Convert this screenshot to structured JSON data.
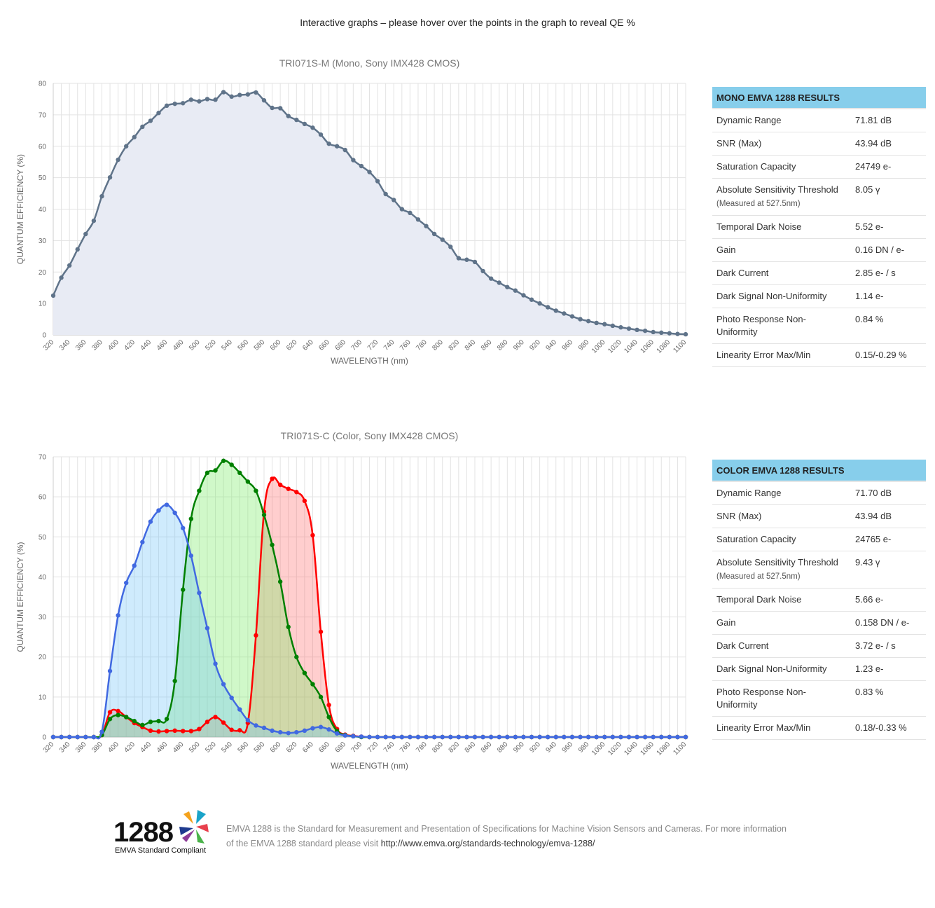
{
  "intro_text": "Interactive graphs – please hover over the points in the graph to reveal QE %",
  "chart_data": [
    {
      "type": "area",
      "title": "TRI071S-M (Mono, Sony IMX428 CMOS)",
      "xlabel": "WAVELENGTH (nm)",
      "ylabel": "QUANTUM EFFICIENCY (%)",
      "xlim": [
        320,
        1100
      ],
      "ylim": [
        0,
        80
      ],
      "yticks": [
        0,
        10,
        20,
        30,
        40,
        50,
        60,
        70,
        80
      ],
      "xtick_labels": [
        "320",
        "340",
        "360",
        "380",
        "400",
        "420",
        "440",
        "460",
        "480",
        "500",
        "520",
        "540",
        "560",
        "580",
        "600",
        "620",
        "640",
        "660",
        "680",
        "700",
        "720",
        "740",
        "760",
        "780",
        "800",
        "820",
        "840",
        "860",
        "880",
        "900",
        "920",
        "940",
        "960",
        "980",
        "1000",
        "1020",
        "1040",
        "1060",
        "1080",
        "1100"
      ],
      "x_start": 320,
      "x_step": 10,
      "series": [
        {
          "name": "Mono",
          "color": "#5f7389",
          "fill": "#e8ebf4",
          "values": [
            12.5,
            18.2,
            22.1,
            27.2,
            32.1,
            36.3,
            44.1,
            50.1,
            55.7,
            60.0,
            62.9,
            66.2,
            68.1,
            70.6,
            72.9,
            73.5,
            73.7,
            74.8,
            74.3,
            75.0,
            74.8,
            77.2,
            75.8,
            76.3,
            76.5,
            77.1,
            74.6,
            72.2,
            72.1,
            69.6,
            68.4,
            67.1,
            65.9,
            63.7,
            60.8,
            60.0,
            58.8,
            55.6,
            53.7,
            51.8,
            48.9,
            44.8,
            42.9,
            40.0,
            38.8,
            36.7,
            34.6,
            32.1,
            30.3,
            28.0,
            24.4,
            23.9,
            23.2,
            20.3,
            17.9,
            16.6,
            15.2,
            14.1,
            12.6,
            11.2,
            10.0,
            8.8,
            7.7,
            6.8,
            5.9,
            5.0,
            4.4,
            3.8,
            3.4,
            2.9,
            2.4,
            2.0,
            1.6,
            1.3,
            0.9,
            0.7,
            0.5,
            0.3,
            0.2
          ]
        }
      ]
    },
    {
      "type": "area",
      "title": "TRI071S-C (Color, Sony IMX428 CMOS)",
      "xlabel": "WAVELENGTH (nm)",
      "ylabel": "QUANTUM EFFICIENCY (%)",
      "xlim": [
        320,
        1100
      ],
      "ylim": [
        0,
        70
      ],
      "yticks": [
        0,
        10,
        20,
        30,
        40,
        50,
        60,
        70
      ],
      "xtick_labels": [
        "320",
        "340",
        "360",
        "380",
        "400",
        "420",
        "440",
        "460",
        "480",
        "500",
        "520",
        "540",
        "560",
        "580",
        "600",
        "620",
        "640",
        "660",
        "680",
        "700",
        "720",
        "740",
        "760",
        "780",
        "800",
        "820",
        "840",
        "860",
        "880",
        "900",
        "920",
        "940",
        "960",
        "980",
        "1000",
        "1020",
        "1040",
        "1060",
        "1080",
        "1100"
      ],
      "x_start": 320,
      "x_step": 10,
      "series": [
        {
          "name": "Red",
          "color": "#ff0000",
          "fill": "rgba(255,80,80,0.28)",
          "values": [
            0,
            0,
            0,
            0,
            0,
            0,
            0.5,
            6.2,
            6.5,
            5.0,
            3.5,
            2.5,
            1.6,
            1.4,
            1.5,
            1.6,
            1.5,
            1.5,
            2.0,
            3.8,
            5.0,
            3.6,
            1.8,
            1.7,
            3.5,
            25.4,
            56.3,
            64.5,
            63.0,
            62.0,
            61.2,
            59.0,
            50.4,
            26.3,
            8.0,
            2.0,
            0.6,
            0.3,
            0.1,
            0,
            0,
            0,
            0,
            0,
            0,
            0,
            0,
            0,
            0,
            0,
            0,
            0,
            0,
            0,
            0,
            0,
            0,
            0,
            0,
            0,
            0,
            0,
            0,
            0,
            0,
            0,
            0,
            0,
            0,
            0,
            0,
            0,
            0,
            0,
            0,
            0,
            0,
            0,
            0
          ]
        },
        {
          "name": "Green",
          "color": "#008000",
          "fill": "rgba(120,235,100,0.35)",
          "values": [
            0,
            0,
            0,
            0,
            0,
            0,
            0.5,
            4.5,
            5.5,
            5.0,
            4.0,
            3.0,
            3.8,
            4.0,
            4.5,
            14.0,
            36.8,
            54.5,
            61.5,
            66.0,
            66.6,
            69.0,
            68.0,
            66.0,
            63.8,
            61.5,
            55.5,
            48.0,
            38.8,
            27.5,
            20.0,
            16.0,
            13.2,
            10.0,
            5.0,
            1.5,
            0.5,
            0.2,
            0,
            0,
            0,
            0,
            0,
            0,
            0,
            0,
            0,
            0,
            0,
            0,
            0,
            0,
            0,
            0,
            0,
            0,
            0,
            0,
            0,
            0,
            0,
            0,
            0,
            0,
            0,
            0,
            0,
            0,
            0,
            0,
            0,
            0,
            0,
            0,
            0,
            0,
            0,
            0,
            0
          ]
        },
        {
          "name": "Blue",
          "color": "#4169e1",
          "fill": "rgba(110,195,250,0.33)",
          "values": [
            0,
            0,
            0,
            0,
            0,
            0,
            1.3,
            16.5,
            30.4,
            38.5,
            42.8,
            48.7,
            53.8,
            56.6,
            58.0,
            56.0,
            52.2,
            45.3,
            36.0,
            27.2,
            18.3,
            13.2,
            9.8,
            6.9,
            4.2,
            2.9,
            2.3,
            1.6,
            1.2,
            1.0,
            1.2,
            1.6,
            2.2,
            2.5,
            1.9,
            0.9,
            0.4,
            0.2,
            0.1,
            0,
            0,
            0,
            0,
            0,
            0,
            0,
            0,
            0,
            0,
            0,
            0,
            0,
            0,
            0,
            0,
            0,
            0,
            0,
            0,
            0,
            0,
            0,
            0,
            0,
            0,
            0,
            0,
            0,
            0,
            0,
            0,
            0,
            0,
            0,
            0,
            0,
            0,
            0,
            0
          ]
        }
      ]
    }
  ],
  "mono_results": {
    "header": "MONO EMVA 1288 RESULTS",
    "rows": [
      {
        "label": "Dynamic Range",
        "value": "71.81 dB"
      },
      {
        "label": "SNR (Max)",
        "value": "43.94 dB"
      },
      {
        "label": "Saturation Capacity",
        "value": "24749 e-"
      },
      {
        "label": "Absolute Sensitivity Threshold",
        "note": "(Measured at 527.5nm)",
        "value": "8.05 γ"
      },
      {
        "label": "Temporal Dark Noise",
        "value": "5.52 e-"
      },
      {
        "label": "Gain",
        "value": "0.16 DN / e-"
      },
      {
        "label": "Dark Current",
        "value": "2.85 e- / s"
      },
      {
        "label": "Dark Signal Non-Uniformity",
        "value": "1.14 e-"
      },
      {
        "label": "Photo Response Non-Uniformity",
        "value": "0.84 %"
      },
      {
        "label": "Linearity Error Max/Min",
        "value": "0.15/-0.29 %"
      }
    ]
  },
  "color_results": {
    "header": "COLOR EMVA 1288 RESULTS",
    "rows": [
      {
        "label": "Dynamic Range",
        "value": "71.70 dB"
      },
      {
        "label": "SNR (Max)",
        "value": "43.94 dB"
      },
      {
        "label": "Saturation Capacity",
        "value": "24765 e-"
      },
      {
        "label": "Absolute Sensitivity Threshold",
        "note": "(Measured at 527.5nm)",
        "value": "9.43 γ"
      },
      {
        "label": "Temporal Dark Noise",
        "value": "5.66 e-"
      },
      {
        "label": "Gain",
        "value": "0.158 DN / e-"
      },
      {
        "label": "Dark Current",
        "value": "3.72 e- / s"
      },
      {
        "label": "Dark Signal Non-Uniformity",
        "value": "1.23 e-"
      },
      {
        "label": "Photo Response Non-Uniformity",
        "value": "0.83 %"
      },
      {
        "label": "Linearity Error Max/Min",
        "value": "0.18/-0.33 %"
      }
    ]
  },
  "footer": {
    "logo_number": "1288",
    "logo_caption": "EMVA Standard Compliant",
    "text": "EMVA 1288 is the Standard for Measurement and Presentation of Specifications for Machine Vision Sensors and Cameras. For more information of the EMVA 1288 standard please visit ",
    "link": "http://www.emva.org/standards-technology/emva-1288/"
  }
}
